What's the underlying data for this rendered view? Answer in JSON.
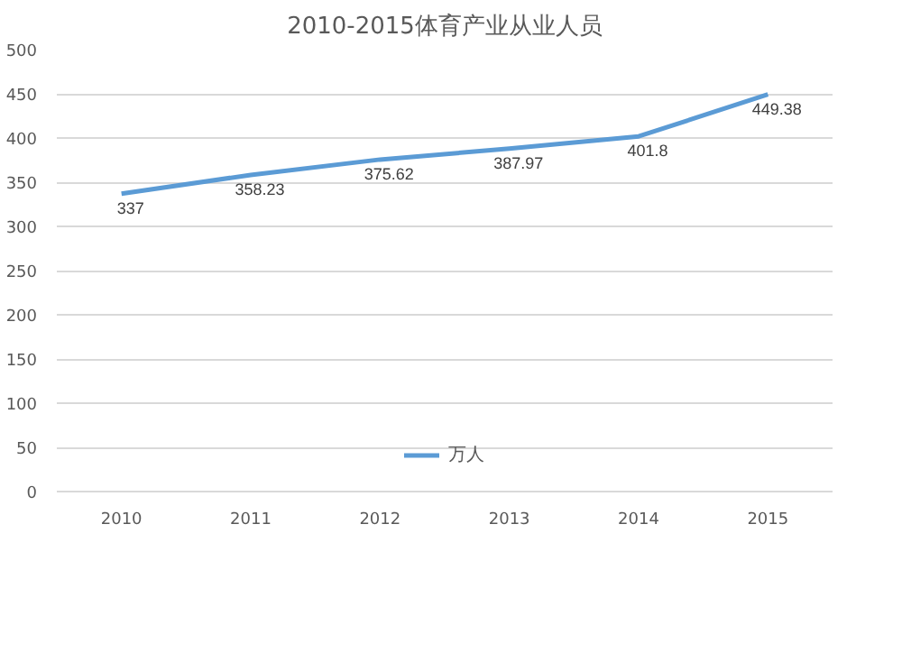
{
  "chart_data": {
    "type": "line",
    "title": "2010-2015体育产业从业人员",
    "categories": [
      "2010",
      "2011",
      "2012",
      "2013",
      "2014",
      "2015"
    ],
    "series": [
      {
        "name": "万人",
        "color": "#5b9bd5",
        "values": [
          337,
          358.23,
          375.62,
          387.97,
          401.8,
          449.38
        ]
      }
    ],
    "ylim": [
      0,
      500
    ],
    "yticks": [
      0,
      50,
      100,
      150,
      200,
      250,
      300,
      350,
      400,
      450,
      500
    ],
    "grid": "y",
    "legend": "bottom",
    "data_labels": true,
    "marker": "none",
    "line_style": "solid"
  }
}
